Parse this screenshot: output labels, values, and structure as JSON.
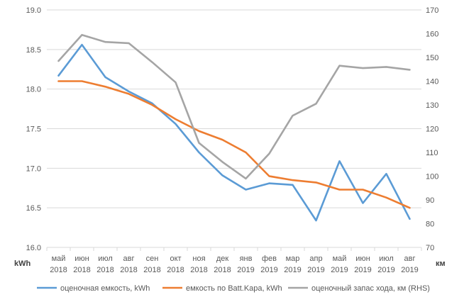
{
  "chart_data": {
    "type": "line",
    "categories": [
      [
        "май",
        "2018"
      ],
      [
        "июн",
        "2018"
      ],
      [
        "июл",
        "2018"
      ],
      [
        "авг",
        "2018"
      ],
      [
        "сен",
        "2018"
      ],
      [
        "окт",
        "2018"
      ],
      [
        "ноя",
        "2018"
      ],
      [
        "дек",
        "2018"
      ],
      [
        "янв",
        "2019"
      ],
      [
        "фев",
        "2019"
      ],
      [
        "мар",
        "2019"
      ],
      [
        "апр",
        "2019"
      ],
      [
        "май",
        "2019"
      ],
      [
        "июн",
        "2019"
      ],
      [
        "июл",
        "2019"
      ],
      [
        "авг",
        "2019"
      ]
    ],
    "left_axis": {
      "unit_label": "kWh",
      "ylim": [
        16.0,
        19.0
      ],
      "ticks": [
        "16.0",
        "16.5",
        "17.0",
        "17.5",
        "18.0",
        "18.5",
        "19.0"
      ]
    },
    "right_axis": {
      "unit_label": "км",
      "ylim": [
        70,
        170
      ],
      "ticks": [
        "70",
        "80",
        "90",
        "100",
        "110",
        "120",
        "130",
        "140",
        "150",
        "160",
        "170"
      ]
    },
    "grid": true,
    "legend_position": "bottom",
    "series": [
      {
        "name": "оценочная емкость, kWh",
        "axis": "left",
        "color": "#5B9BD5",
        "values": [
          18.17,
          18.56,
          18.15,
          17.97,
          17.82,
          17.56,
          17.2,
          16.91,
          16.73,
          16.81,
          16.79,
          16.34,
          17.09,
          16.56,
          16.93,
          16.36
        ]
      },
      {
        "name": "емкость по Batt.Kapa, kWh",
        "axis": "left",
        "color": "#ED7D31",
        "values": [
          18.1,
          18.1,
          18.03,
          17.94,
          17.8,
          17.62,
          17.47,
          17.36,
          17.2,
          16.9,
          16.85,
          16.82,
          16.73,
          16.73,
          16.63,
          16.5
        ]
      },
      {
        "name": "оценочный запас хода, км (RHS)",
        "axis": "right",
        "color": "#A5A5A5",
        "values": [
          148.5,
          159.5,
          156.5,
          156.0,
          148.0,
          139.5,
          114.0,
          106.0,
          99.0,
          109.5,
          125.5,
          130.5,
          146.5,
          145.5,
          146.0,
          144.8
        ]
      }
    ]
  }
}
